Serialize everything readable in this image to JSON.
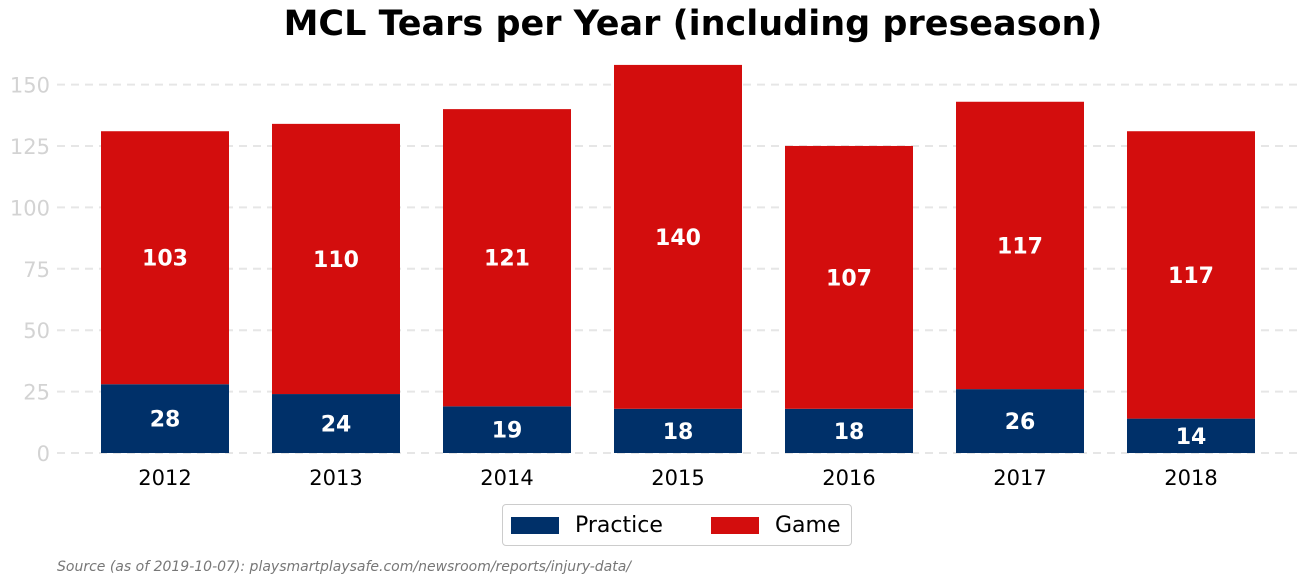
{
  "chart_data": {
    "type": "bar",
    "stacked": true,
    "title": "MCL Tears per Year (including preseason)",
    "categories": [
      "2012",
      "2013",
      "2014",
      "2015",
      "2016",
      "2017",
      "2018"
    ],
    "series": [
      {
        "name": "Practice",
        "values": [
          28,
          24,
          19,
          18,
          18,
          26,
          14
        ],
        "color": "#003069"
      },
      {
        "name": "Game",
        "values": [
          103,
          110,
          121,
          140,
          107,
          117,
          117
        ],
        "color": "#d30d0d"
      }
    ],
    "ylim": [
      0,
      160
    ],
    "yticks": [
      0,
      25,
      50,
      75,
      100,
      125,
      150
    ],
    "grid": true,
    "legend_position": "bottom-center",
    "source": "Source (as of 2019-10-07): playsmartplaysafe.com/newsroom/reports/injury-data/"
  }
}
